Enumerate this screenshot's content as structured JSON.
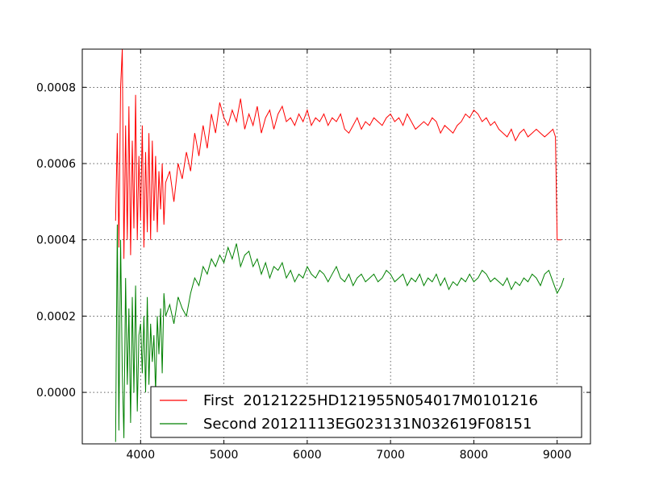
{
  "chart_data": {
    "type": "line",
    "title": "",
    "xlabel": "",
    "ylabel": "",
    "xlim": [
      3300,
      9400
    ],
    "ylim": [
      -0.000135,
      0.0009
    ],
    "grid": true,
    "legend_position": "lower-right",
    "x_ticks": [
      {
        "value": 4000,
        "label": "4000"
      },
      {
        "value": 5000,
        "label": "5000"
      },
      {
        "value": 6000,
        "label": "6000"
      },
      {
        "value": 7000,
        "label": "7000"
      },
      {
        "value": 8000,
        "label": "8000"
      },
      {
        "value": 9000,
        "label": "9000"
      }
    ],
    "y_ticks": [
      {
        "value": 0.0,
        "label": "0.0000"
      },
      {
        "value": 0.0002,
        "label": "0.0002"
      },
      {
        "value": 0.0004,
        "label": "0.0004"
      },
      {
        "value": 0.0006,
        "label": "0.0006"
      },
      {
        "value": 0.0008,
        "label": "0.0008"
      }
    ],
    "series": [
      {
        "name": "First  20121225HD121955N054017M0101216",
        "color": "#ff0000",
        "x": [
          3700,
          3720,
          3740,
          3760,
          3780,
          3800,
          3820,
          3840,
          3860,
          3880,
          3900,
          3920,
          3940,
          3960,
          3980,
          4000,
          4020,
          4040,
          4060,
          4080,
          4100,
          4120,
          4140,
          4160,
          4180,
          4200,
          4220,
          4240,
          4260,
          4280,
          4300,
          4350,
          4400,
          4450,
          4500,
          4550,
          4600,
          4650,
          4700,
          4750,
          4800,
          4850,
          4900,
          4950,
          5000,
          5050,
          5100,
          5150,
          5200,
          5250,
          5300,
          5350,
          5400,
          5450,
          5500,
          5550,
          5600,
          5650,
          5700,
          5750,
          5800,
          5850,
          5900,
          5950,
          6000,
          6050,
          6100,
          6150,
          6200,
          6250,
          6300,
          6350,
          6400,
          6450,
          6500,
          6550,
          6600,
          6650,
          6700,
          6750,
          6800,
          6850,
          6900,
          6950,
          7000,
          7050,
          7100,
          7150,
          7200,
          7250,
          7300,
          7350,
          7400,
          7450,
          7500,
          7550,
          7600,
          7650,
          7700,
          7750,
          7800,
          7850,
          7900,
          7950,
          8000,
          8050,
          8100,
          8150,
          8200,
          8250,
          8300,
          8350,
          8400,
          8450,
          8500,
          8550,
          8600,
          8650,
          8700,
          8750,
          8800,
          8850,
          8900,
          8950,
          8980,
          9000,
          9050
        ],
        "y": [
          0.00045,
          0.00068,
          0.00038,
          0.0008,
          0.0009,
          0.00035,
          0.0007,
          0.0004,
          0.00075,
          0.00036,
          0.00066,
          0.00043,
          0.00078,
          0.0004,
          0.00062,
          0.00045,
          0.0007,
          0.00038,
          0.00063,
          0.00042,
          0.00068,
          0.0004,
          0.00066,
          0.00045,
          0.00062,
          0.00042,
          0.00058,
          0.00048,
          0.0006,
          0.00044,
          0.00055,
          0.00058,
          0.0005,
          0.0006,
          0.00056,
          0.00063,
          0.00058,
          0.00068,
          0.00062,
          0.0007,
          0.00064,
          0.00073,
          0.00068,
          0.00076,
          0.00072,
          0.0007,
          0.00074,
          0.00071,
          0.00077,
          0.00069,
          0.00073,
          0.0007,
          0.00075,
          0.00068,
          0.00072,
          0.00074,
          0.00069,
          0.00073,
          0.00075,
          0.00071,
          0.00072,
          0.0007,
          0.00073,
          0.00071,
          0.00074,
          0.0007,
          0.00072,
          0.00071,
          0.00073,
          0.0007,
          0.00072,
          0.00071,
          0.00073,
          0.00069,
          0.00068,
          0.0007,
          0.00072,
          0.00069,
          0.00071,
          0.0007,
          0.00072,
          0.00071,
          0.0007,
          0.00072,
          0.00073,
          0.00071,
          0.00072,
          0.0007,
          0.00073,
          0.00071,
          0.00069,
          0.0007,
          0.00071,
          0.0007,
          0.00072,
          0.00071,
          0.00068,
          0.0007,
          0.00069,
          0.00068,
          0.0007,
          0.00071,
          0.00073,
          0.00072,
          0.00074,
          0.00073,
          0.00071,
          0.00072,
          0.0007,
          0.00071,
          0.00069,
          0.00068,
          0.00067,
          0.00069,
          0.00066,
          0.00068,
          0.00069,
          0.00067,
          0.00068,
          0.00069,
          0.00068,
          0.00067,
          0.00068,
          0.00069,
          0.00067,
          0.0004,
          0.0004
        ]
      },
      {
        "name": "Second 20121113EG023131N032619F08151",
        "color": "#008000",
        "x": [
          3700,
          3720,
          3740,
          3760,
          3780,
          3800,
          3820,
          3840,
          3860,
          3880,
          3900,
          3920,
          3940,
          3960,
          3980,
          4000,
          4020,
          4040,
          4060,
          4080,
          4100,
          4120,
          4140,
          4160,
          4180,
          4200,
          4220,
          4240,
          4260,
          4280,
          4300,
          4350,
          4400,
          4450,
          4500,
          4550,
          4600,
          4650,
          4700,
          4750,
          4800,
          4850,
          4900,
          4950,
          5000,
          5050,
          5100,
          5150,
          5200,
          5250,
          5300,
          5350,
          5400,
          5450,
          5500,
          5550,
          5600,
          5650,
          5700,
          5750,
          5800,
          5850,
          5900,
          5950,
          6000,
          6050,
          6100,
          6150,
          6200,
          6250,
          6300,
          6350,
          6400,
          6450,
          6500,
          6550,
          6600,
          6650,
          6700,
          6750,
          6800,
          6850,
          6900,
          6950,
          7000,
          7050,
          7100,
          7150,
          7200,
          7250,
          7300,
          7350,
          7400,
          7450,
          7500,
          7550,
          7600,
          7650,
          7700,
          7750,
          7800,
          7850,
          7900,
          7950,
          8000,
          8050,
          8100,
          8150,
          8200,
          8250,
          8300,
          8350,
          8400,
          8450,
          8500,
          8550,
          8600,
          8650,
          8700,
          8750,
          8800,
          8850,
          8900,
          8950,
          9000,
          9050,
          9080
        ],
        "y": [
          -0.00013,
          0.00044,
          -0.0001,
          0.0004,
          5e-05,
          -0.00012,
          0.0003,
          2e-05,
          0.00022,
          -8e-05,
          0.00025,
          0.0,
          0.00028,
          -5e-05,
          0.00015,
          0.00018,
          5e-05,
          0.0002,
          0.0,
          0.00025,
          2e-05,
          0.00018,
          8e-05,
          0.00015,
          0.0,
          0.0002,
          0.0001,
          0.00022,
          5e-05,
          0.00026,
          0.0002,
          0.00023,
          0.00018,
          0.00025,
          0.00022,
          0.0002,
          0.00026,
          0.0003,
          0.00028,
          0.00033,
          0.00031,
          0.00035,
          0.00033,
          0.00036,
          0.00034,
          0.00038,
          0.00035,
          0.00039,
          0.00033,
          0.00036,
          0.00037,
          0.00033,
          0.00035,
          0.00031,
          0.00034,
          0.0003,
          0.00033,
          0.00032,
          0.00034,
          0.0003,
          0.00032,
          0.00029,
          0.00031,
          0.0003,
          0.00033,
          0.00031,
          0.0003,
          0.00032,
          0.00031,
          0.00029,
          0.00031,
          0.00033,
          0.0003,
          0.00029,
          0.00031,
          0.00028,
          0.0003,
          0.00031,
          0.00029,
          0.0003,
          0.00031,
          0.00029,
          0.0003,
          0.00032,
          0.00031,
          0.00029,
          0.0003,
          0.00031,
          0.00028,
          0.0003,
          0.00029,
          0.00031,
          0.00028,
          0.0003,
          0.00029,
          0.00031,
          0.00028,
          0.0003,
          0.00027,
          0.00029,
          0.00028,
          0.0003,
          0.00029,
          0.00031,
          0.00029,
          0.0003,
          0.00032,
          0.00031,
          0.00029,
          0.0003,
          0.00029,
          0.00028,
          0.0003,
          0.00027,
          0.00029,
          0.00028,
          0.0003,
          0.00029,
          0.00031,
          0.0003,
          0.00028,
          0.00031,
          0.00032,
          0.00029,
          0.00026,
          0.00028,
          0.0003
        ]
      }
    ]
  }
}
